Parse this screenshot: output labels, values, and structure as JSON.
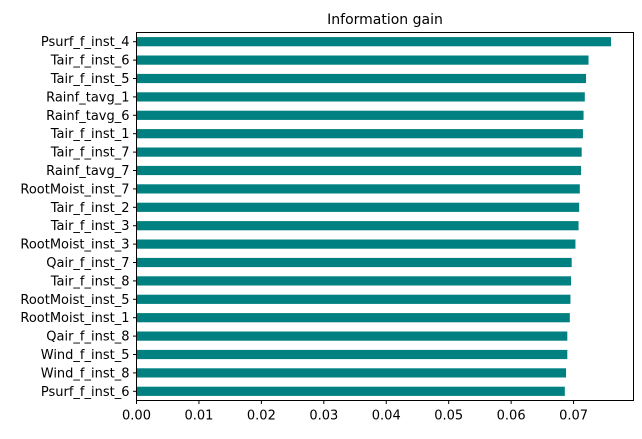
{
  "chart_data": {
    "type": "bar",
    "orientation": "horizontal",
    "title": "Information gain",
    "xlabel": "",
    "ylabel": "",
    "categories": [
      "Psurf_f_inst_4",
      "Tair_f_inst_6",
      "Tair_f_inst_5",
      "Rainf_tavg_1",
      "Rainf_tavg_6",
      "Tair_f_inst_1",
      "Tair_f_inst_7",
      "Rainf_tavg_7",
      "RootMoist_inst_7",
      "Tair_f_inst_2",
      "Tair_f_inst_3",
      "RootMoist_inst_3",
      "Qair_f_inst_7",
      "Tair_f_inst_8",
      "RootMoist_inst_5",
      "RootMoist_inst_1",
      "Qair_f_inst_8",
      "Wind_f_inst_5",
      "Wind_f_inst_8",
      "Psurf_f_inst_6"
    ],
    "values": [
      0.076,
      0.0724,
      0.072,
      0.0718,
      0.0716,
      0.0715,
      0.0713,
      0.0712,
      0.071,
      0.0709,
      0.0708,
      0.0703,
      0.0697,
      0.0696,
      0.0695,
      0.0694,
      0.069,
      0.069,
      0.0688,
      0.0686
    ],
    "xlim": [
      0,
      0.0796
    ],
    "xticks": [
      0.0,
      0.01,
      0.02,
      0.03,
      0.04,
      0.05,
      0.06,
      0.07
    ],
    "xtick_labels": [
      "0.00",
      "0.01",
      "0.02",
      "0.03",
      "0.04",
      "0.05",
      "0.06",
      "0.07"
    ],
    "bar_color": "#008080",
    "grid": false,
    "legend": "none"
  }
}
